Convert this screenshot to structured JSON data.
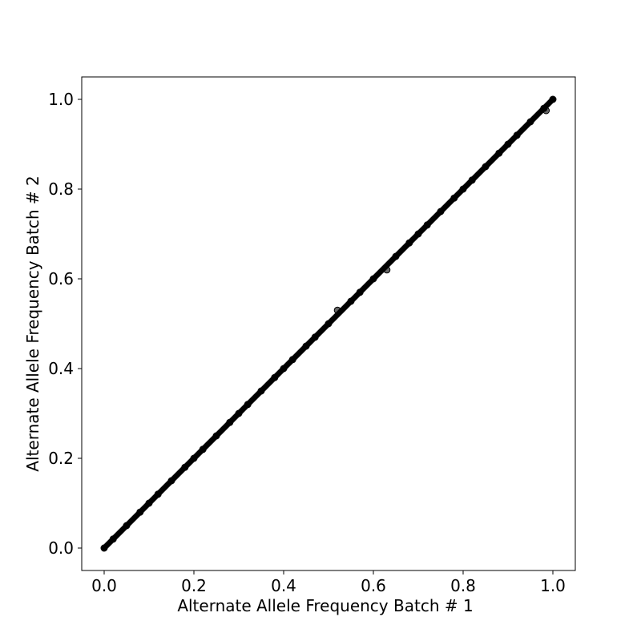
{
  "chart_data": {
    "type": "scatter",
    "title": "",
    "xlabel": "Alternate Allele Frequency Batch # 1",
    "ylabel": "Alternate Allele Frequency Batch # 2",
    "xlim": [
      -0.05,
      1.05
    ],
    "ylim": [
      -0.05,
      1.05
    ],
    "xticks": [
      0.0,
      0.2,
      0.4,
      0.6,
      0.8,
      1.0
    ],
    "yticks": [
      0.0,
      0.2,
      0.4,
      0.6,
      0.8,
      1.0
    ],
    "xtick_labels": [
      "0.0",
      "0.2",
      "0.4",
      "0.6",
      "0.8",
      "1.0"
    ],
    "ytick_labels": [
      "0.0",
      "0.2",
      "0.4",
      "0.6",
      "0.8",
      "1.0"
    ],
    "grid": false,
    "marker_color": "#000000",
    "x": [
      0.0,
      0.02,
      0.05,
      0.08,
      0.1,
      0.12,
      0.15,
      0.18,
      0.2,
      0.22,
      0.25,
      0.28,
      0.3,
      0.32,
      0.35,
      0.38,
      0.4,
      0.42,
      0.45,
      0.47,
      0.5,
      0.52,
      0.55,
      0.57,
      0.6,
      0.63,
      0.65,
      0.68,
      0.7,
      0.72,
      0.75,
      0.78,
      0.8,
      0.82,
      0.85,
      0.88,
      0.9,
      0.92,
      0.95,
      0.98,
      0.985,
      1.0
    ],
    "y": [
      0.0,
      0.02,
      0.05,
      0.08,
      0.1,
      0.12,
      0.15,
      0.18,
      0.2,
      0.22,
      0.25,
      0.28,
      0.3,
      0.32,
      0.35,
      0.38,
      0.4,
      0.42,
      0.45,
      0.47,
      0.5,
      0.53,
      0.55,
      0.57,
      0.6,
      0.62,
      0.65,
      0.68,
      0.7,
      0.72,
      0.75,
      0.78,
      0.8,
      0.82,
      0.85,
      0.88,
      0.9,
      0.92,
      0.95,
      0.98,
      0.975,
      1.0
    ]
  }
}
